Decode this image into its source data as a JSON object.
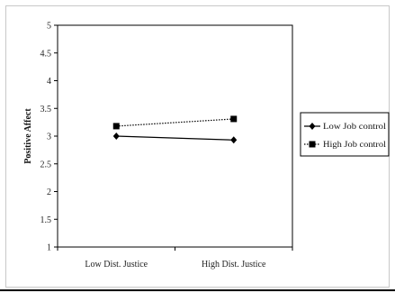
{
  "chart_data": {
    "type": "line",
    "title": "",
    "xlabel": "",
    "ylabel": "Positive Affect",
    "categories": [
      "Low Dist. Justice",
      "High Dist. Justice"
    ],
    "ylim": [
      1,
      5
    ],
    "yticks": [
      "1",
      "1.5",
      "2",
      "2.5",
      "3",
      "3.5",
      "4",
      "4.5",
      "5"
    ],
    "grid": false,
    "legend_position": "right",
    "series": [
      {
        "name": "Low Job control",
        "values": [
          3.0,
          2.93
        ],
        "marker": "diamond",
        "line_style": "solid",
        "color": "#000000"
      },
      {
        "name": "High Job control",
        "values": [
          3.18,
          3.31
        ],
        "marker": "square",
        "line_style": "dotted",
        "color": "#000000"
      }
    ]
  }
}
